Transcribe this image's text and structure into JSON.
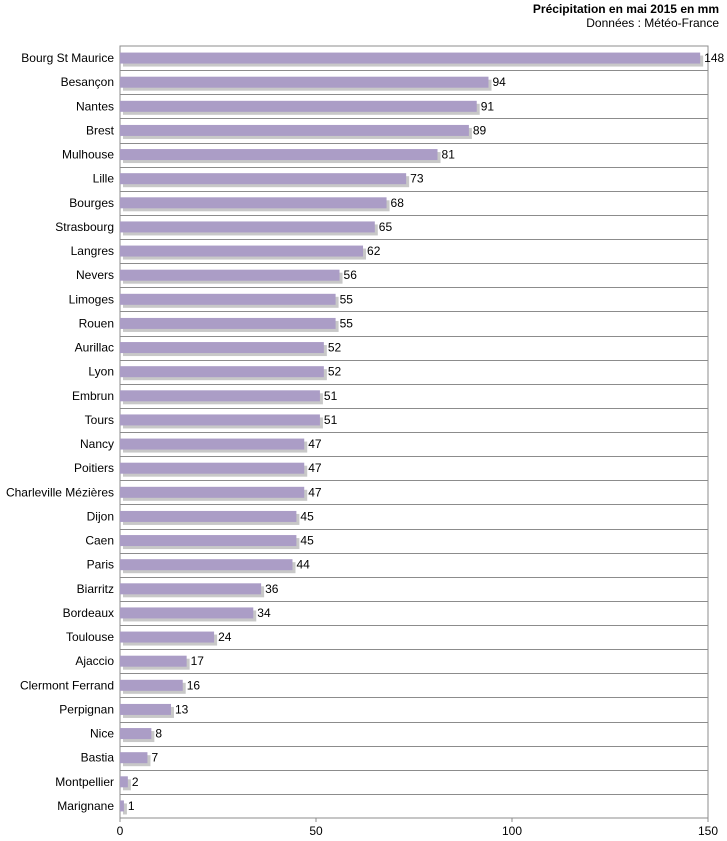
{
  "chart_data": {
    "type": "bar",
    "orientation": "horizontal",
    "title": "Précipitation en mai 2015 en mm",
    "subtitle": "Données : Météo-France",
    "categories": [
      "Bourg St Maurice",
      "Besançon",
      "Nantes",
      "Brest",
      "Mulhouse",
      "Lille",
      "Bourges",
      "Strasbourg",
      "Langres",
      "Nevers",
      "Limoges",
      "Rouen",
      "Aurillac",
      "Lyon",
      "Embrun",
      "Tours",
      "Nancy",
      "Poitiers",
      "Charleville Mézières",
      "Dijon",
      "Caen",
      "Paris",
      "Biarritz",
      "Bordeaux",
      "Toulouse",
      "Ajaccio",
      "Clermont Ferrand",
      "Perpignan",
      "Nice",
      "Bastia",
      "Montpellier",
      "Marignane"
    ],
    "values": [
      148,
      94,
      91,
      89,
      81,
      73,
      68,
      65,
      62,
      56,
      55,
      55,
      52,
      52,
      51,
      51,
      47,
      47,
      47,
      45,
      45,
      44,
      36,
      34,
      24,
      17,
      16,
      13,
      8,
      7,
      2,
      1
    ],
    "xlim": [
      0,
      150
    ],
    "xticks": [
      0,
      50,
      100,
      150
    ],
    "grid": "horizontal lines between categories",
    "bar_color": "#ab9dc6",
    "shadow_color": "#c8c8c8",
    "grid_color": "#8c8c8c"
  }
}
